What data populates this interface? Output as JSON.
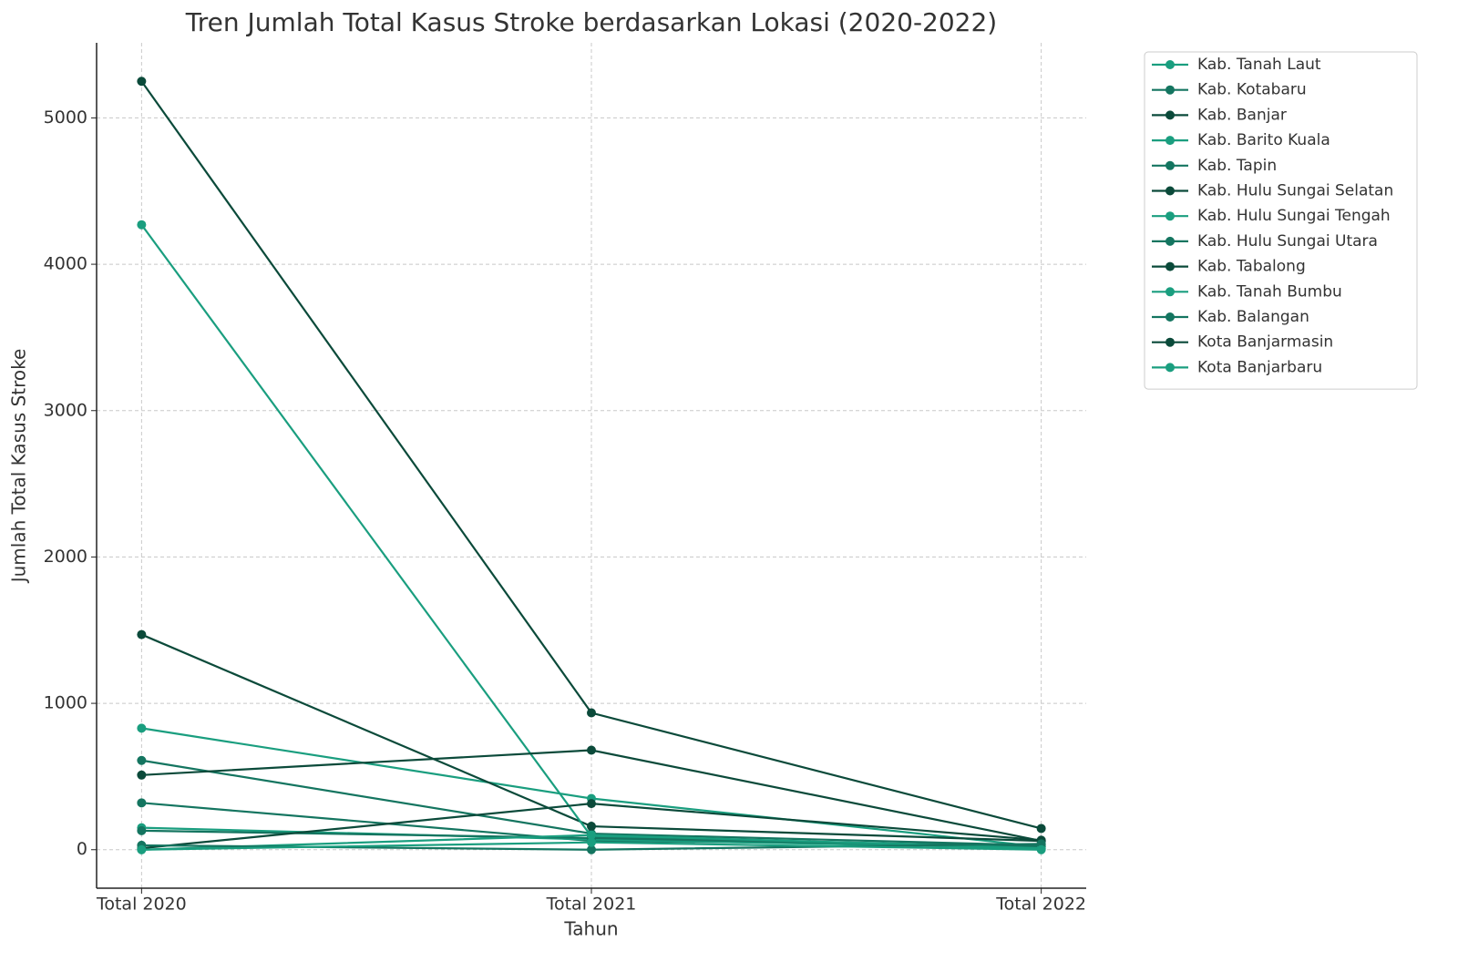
{
  "chart_data": {
    "type": "line",
    "title": "Tren Jumlah Total Kasus Stroke berdasarkan Lokasi (2020-2022)",
    "x_label": "Tahun",
    "y_label": "Jumlah Total Kasus Stroke",
    "categories": [
      "Total 2020",
      "Total 2021",
      "Total 2022"
    ],
    "ylim": [
      -263,
      5513
    ],
    "yticks": [
      0,
      1000,
      2000,
      3000,
      4000,
      5000
    ],
    "grid": true,
    "legend": "outside-upper-right",
    "series": [
      {
        "name": "Kab. Tanah Laut",
        "color": "#1a9e7f",
        "values": [
          830,
          350,
          20
        ]
      },
      {
        "name": "Kab. Kotabaru",
        "color": "#147560",
        "values": [
          610,
          110,
          30
        ]
      },
      {
        "name": "Kab. Banjar",
        "color": "#0b4a3a",
        "values": [
          1470,
          160,
          60
        ]
      },
      {
        "name": "Kab. Barito Kuala",
        "color": "#1a9e7f",
        "values": [
          4270,
          90,
          20
        ]
      },
      {
        "name": "Kab. Tapin",
        "color": "#147560",
        "values": [
          320,
          60,
          30
        ]
      },
      {
        "name": "Kab. Hulu Sungai Selatan",
        "color": "#0b4a3a",
        "values": [
          510,
          680,
          60
        ]
      },
      {
        "name": "Kab. Hulu Sungai Tengah",
        "color": "#1a9e7f",
        "values": [
          150,
          70,
          10
        ]
      },
      {
        "name": "Kab. Hulu Sungai Utara",
        "color": "#147560",
        "values": [
          130,
          80,
          20
        ]
      },
      {
        "name": "Kab. Tabalong",
        "color": "#0b4a3a",
        "values": [
          10,
          315,
          65
        ]
      },
      {
        "name": "Kab. Tanah Bumbu",
        "color": "#1a9e7f",
        "values": [
          0,
          100,
          10
        ]
      },
      {
        "name": "Kab. Balangan",
        "color": "#147560",
        "values": [
          30,
          0,
          40
        ]
      },
      {
        "name": "Kota Banjarmasin",
        "color": "#0b4a3a",
        "values": [
          5250,
          935,
          145
        ]
      },
      {
        "name": "Kota Banjarbaru",
        "color": "#1a9e7f",
        "values": [
          0,
          50,
          0
        ]
      }
    ]
  }
}
